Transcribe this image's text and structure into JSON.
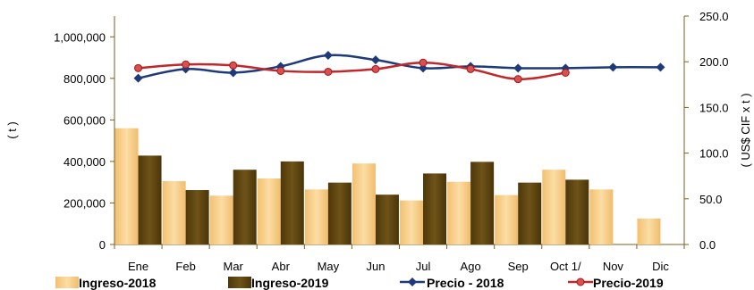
{
  "chart_data": {
    "type": "bar",
    "categories": [
      "Ene",
      "Feb",
      "Mar",
      "Abr",
      "May",
      "Jun",
      "Jul",
      "Ago",
      "Sep",
      "Oct  1/",
      "Nov",
      "Dic"
    ],
    "series": [
      {
        "name": "Ingreso-2018",
        "kind": "bar",
        "axis": "left",
        "color": "#F6C87A",
        "values": [
          560000,
          305000,
          235000,
          318000,
          265000,
          390000,
          212000,
          302000,
          238000,
          360000,
          265000,
          125000
        ]
      },
      {
        "name": "Ingreso-2019",
        "kind": "bar",
        "axis": "left",
        "color": "#5C4210",
        "values": [
          428000,
          262000,
          360000,
          400000,
          298000,
          240000,
          342000,
          398000,
          298000,
          312000,
          null,
          null
        ]
      },
      {
        "name": "Precio - 2018",
        "kind": "line",
        "axis": "right",
        "color": "#1F3A7A",
        "marker": "diamond",
        "values": [
          182,
          192,
          188,
          195,
          207,
          202,
          193,
          195,
          193,
          193,
          194,
          194
        ]
      },
      {
        "name": "Precio-2019",
        "kind": "line",
        "axis": "right",
        "color": "#C0282B",
        "marker": "circle",
        "values": [
          193,
          197,
          196,
          190,
          189,
          192,
          199,
          192,
          181,
          188,
          null,
          null
        ]
      }
    ],
    "ylabel": "( t )",
    "y2label": "( US$ CIF x t )",
    "ylim": [
      0,
      1100000
    ],
    "y2lim": [
      0,
      250
    ],
    "yticks": [
      "0",
      "200,000",
      "400,000",
      "600,000",
      "800,000",
      "1,000,000"
    ],
    "yticks_values": [
      0,
      200000,
      400000,
      600000,
      800000,
      1000000
    ],
    "y2ticks": [
      "0.0",
      "50.0",
      "100.0",
      "150.0",
      "200.0",
      "250.0"
    ],
    "y2ticks_values": [
      0,
      50,
      100,
      150,
      200,
      250
    ],
    "grid": false,
    "legend_position": "bottom"
  }
}
